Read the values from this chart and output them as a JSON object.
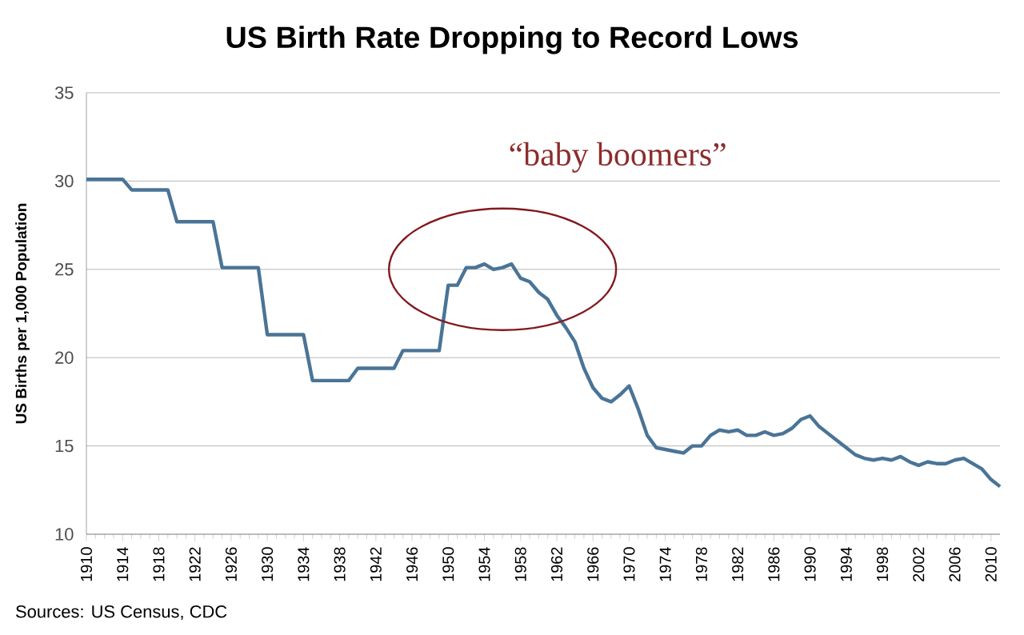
{
  "chart_data": {
    "type": "line",
    "title": "US Birth Rate Dropping to Record Lows",
    "ylabel": "US Births per 1,000 Population",
    "x": [
      1910,
      1911,
      1912,
      1913,
      1914,
      1915,
      1916,
      1917,
      1918,
      1919,
      1920,
      1921,
      1922,
      1923,
      1924,
      1925,
      1926,
      1927,
      1928,
      1929,
      1930,
      1931,
      1932,
      1933,
      1934,
      1935,
      1936,
      1937,
      1938,
      1939,
      1940,
      1941,
      1942,
      1943,
      1944,
      1945,
      1946,
      1947,
      1948,
      1949,
      1950,
      1951,
      1952,
      1953,
      1954,
      1955,
      1956,
      1957,
      1958,
      1959,
      1960,
      1961,
      1962,
      1963,
      1964,
      1965,
      1966,
      1967,
      1968,
      1969,
      1970,
      1971,
      1972,
      1973,
      1974,
      1975,
      1976,
      1977,
      1978,
      1979,
      1980,
      1981,
      1982,
      1983,
      1984,
      1985,
      1986,
      1987,
      1988,
      1989,
      1990,
      1991,
      1992,
      1993,
      1994,
      1995,
      1996,
      1997,
      1998,
      1999,
      2000,
      2001,
      2002,
      2003,
      2004,
      2005,
      2006,
      2007,
      2008,
      2009,
      2010,
      2011
    ],
    "series": [
      {
        "color": "#4a7497",
        "values": [
          30.1,
          30.1,
          30.1,
          30.1,
          30.1,
          29.5,
          29.5,
          29.5,
          29.5,
          29.5,
          27.7,
          27.7,
          27.7,
          27.7,
          27.7,
          25.1,
          25.1,
          25.1,
          25.1,
          25.1,
          21.3,
          21.3,
          21.3,
          21.3,
          21.3,
          18.7,
          18.7,
          18.7,
          18.7,
          18.7,
          19.4,
          19.4,
          19.4,
          19.4,
          19.4,
          20.4,
          20.4,
          20.4,
          20.4,
          20.4,
          24.1,
          24.1,
          25.1,
          25.1,
          25.3,
          25.0,
          25.1,
          25.3,
          24.5,
          24.3,
          23.7,
          23.3,
          22.4,
          21.7,
          20.9,
          19.4,
          18.3,
          17.7,
          17.5,
          17.9,
          18.4,
          17.1,
          15.6,
          14.9,
          14.8,
          14.7,
          14.6,
          15.0,
          15.0,
          15.6,
          15.9,
          15.8,
          15.9,
          15.6,
          15.6,
          15.8,
          15.6,
          15.7,
          16.0,
          16.5,
          16.7,
          16.1,
          15.7,
          15.3,
          14.9,
          14.5,
          14.3,
          14.2,
          14.3,
          14.2,
          14.4,
          14.1,
          13.9,
          14.1,
          14.0,
          14.0,
          14.2,
          14.3,
          14.0,
          13.7,
          13.1,
          12.7
        ]
      }
    ],
    "xlim": [
      1910,
      2011
    ],
    "xticks": [
      1910,
      1914,
      1918,
      1922,
      1926,
      1930,
      1934,
      1938,
      1942,
      1946,
      1950,
      1954,
      1958,
      1962,
      1966,
      1970,
      1974,
      1978,
      1982,
      1986,
      1990,
      1994,
      1998,
      2002,
      2006,
      2010
    ],
    "ylim": [
      10,
      35
    ],
    "yticks": [
      10,
      15,
      20,
      25,
      30,
      35
    ],
    "grid": "y",
    "annotations": [
      {
        "text": "“baby boomers”",
        "x": 1956,
        "y": 25
      },
      "Sources: US Census, CDC"
    ]
  }
}
